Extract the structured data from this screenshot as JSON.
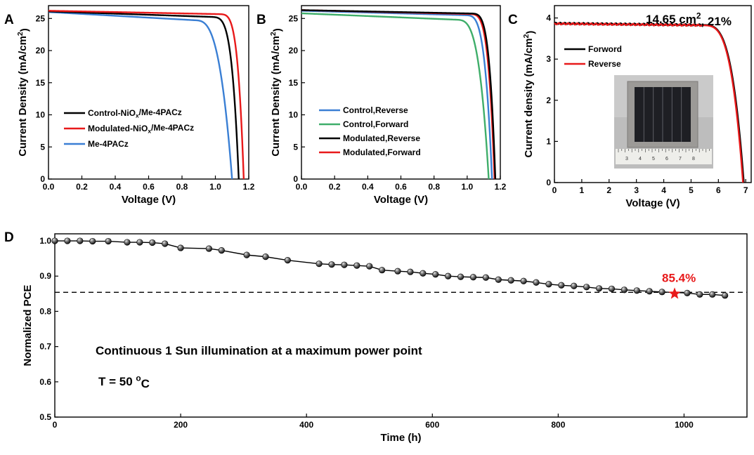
{
  "chart_data": [
    {
      "panel": "A",
      "type": "line",
      "xlabel": "Voltage (V)",
      "ylabel": "Current Density (mA/cm2)",
      "xlim": [
        0,
        1.2
      ],
      "ylim": [
        0,
        27
      ],
      "xticks": [
        "0.0",
        "0.2",
        "0.4",
        "0.6",
        "0.8",
        "1.0",
        "1.2"
      ],
      "yticks": [
        "0",
        "5",
        "10",
        "15",
        "20",
        "25"
      ],
      "legend_position": "lower-left",
      "series": [
        {
          "name": "Control-NiOx/Me-4PACz",
          "label_parts": [
            "Control-NiO",
            "x",
            "/Me-4PACz"
          ],
          "color": "#000000",
          "jsc": 26.1,
          "voc": 1.14,
          "vknee": 0.96,
          "drop": 1.0,
          "m": 4.5
        },
        {
          "name": "Modulated-NiOx/Me-4PACz",
          "label_parts": [
            "Modulated-NiO",
            "x",
            "/Me-4PACz"
          ],
          "color": "#e8191a",
          "jsc": 26.2,
          "voc": 1.17,
          "vknee": 1.01,
          "drop": 0.6,
          "m": 4.5
        },
        {
          "name": "Me-4PACz",
          "label_parts": [
            "Me-4PACz",
            "",
            ""
          ],
          "color": "#3a7fd4",
          "jsc": 26.0,
          "voc": 1.1,
          "vknee": 0.88,
          "drop": 1.6,
          "m": 3.0
        }
      ]
    },
    {
      "panel": "B",
      "type": "line",
      "xlabel": "Voltage (V)",
      "ylabel": "Current Density (mA/cm2)",
      "xlim": [
        0,
        1.2
      ],
      "ylim": [
        0,
        27
      ],
      "xticks": [
        "0.0",
        "0.2",
        "0.4",
        "0.6",
        "0.8",
        "1.0",
        "1.2"
      ],
      "yticks": [
        "0",
        "5",
        "10",
        "15",
        "20",
        "25"
      ],
      "legend_position": "lower-left",
      "series": [
        {
          "name": "Control,Reverse",
          "color": "#3a7fd4",
          "jsc": 26.2,
          "voc": 1.15,
          "vknee": 0.98,
          "drop": 0.8,
          "m": 4.0
        },
        {
          "name": "Control,Forward",
          "color": "#3fae6a",
          "jsc": 25.8,
          "voc": 1.13,
          "vknee": 0.93,
          "drop": 1.2,
          "m": 3.5
        },
        {
          "name": "Modulated,Reverse",
          "color": "#000000",
          "jsc": 26.3,
          "voc": 1.17,
          "vknee": 1.01,
          "drop": 0.6,
          "m": 4.5
        },
        {
          "name": "Modulated,Forward",
          "color": "#e8191a",
          "jsc": 26.3,
          "voc": 1.165,
          "vknee": 1.0,
          "drop": 0.7,
          "m": 4.5
        }
      ]
    },
    {
      "panel": "C",
      "type": "line",
      "xlabel": "Voltage (V)",
      "ylabel": "Current density (mA/cm2)",
      "xlim": [
        0,
        7.2
      ],
      "ylim": [
        0,
        4.3
      ],
      "xticks": [
        "0",
        "1",
        "2",
        "3",
        "4",
        "5",
        "6",
        "7"
      ],
      "yticks": [
        "0",
        "1",
        "2",
        "3",
        "4"
      ],
      "annotation": "14.65 cm2, 21%",
      "annotation_parts": [
        "14.65 cm",
        "2",
        ", 21%"
      ],
      "legend_position": "upper-left",
      "inset": "photo of perovskite mini-module on a ruler",
      "ruler_labels": [
        "3",
        "4",
        "5",
        "6",
        "7",
        "8"
      ],
      "series": [
        {
          "name": "Forword",
          "color": "#000000",
          "jsc": 3.87,
          "voc": 6.93,
          "vknee": 5.4,
          "drop": 0.05,
          "m": 3.5
        },
        {
          "name": "Reverse",
          "color": "#e8191a",
          "jsc": 3.86,
          "voc": 6.9,
          "vknee": 5.4,
          "drop": 0.05,
          "m": 3.5
        }
      ]
    },
    {
      "panel": "D",
      "type": "scatter",
      "xlabel": "Time (h)",
      "ylabel": "Normalized PCE",
      "xlim": [
        0,
        1100
      ],
      "ylim": [
        0.5,
        1.02
      ],
      "xticks": [
        "0",
        "200",
        "400",
        "600",
        "800",
        "1000"
      ],
      "yticks": [
        "0.5",
        "0.6",
        "0.7",
        "0.8",
        "0.9",
        "1.0"
      ],
      "reference_line": 0.854,
      "highlight": {
        "x": 985,
        "y": 0.85,
        "label": "85.4%",
        "color": "#e8191a"
      },
      "annotation_lines": [
        "Continuous 1 Sun illumination at a maximum power point"
      ],
      "temperature_parts": [
        "T = 50 ",
        "o",
        "C"
      ],
      "series": [
        {
          "name": "Normalized PCE",
          "color": "#000000",
          "x": [
            0,
            20,
            40,
            60,
            85,
            115,
            135,
            155,
            175,
            200,
            245,
            265,
            305,
            335,
            370,
            420,
            440,
            460,
            480,
            500,
            520,
            545,
            565,
            585,
            605,
            625,
            645,
            665,
            685,
            705,
            725,
            745,
            765,
            785,
            805,
            825,
            845,
            865,
            885,
            905,
            925,
            945,
            965,
            1005,
            1025,
            1045,
            1065
          ],
          "y": [
            1.0,
            1.0,
            1.0,
            0.999,
            0.999,
            0.996,
            0.996,
            0.995,
            0.992,
            0.98,
            0.978,
            0.973,
            0.96,
            0.955,
            0.945,
            0.935,
            0.933,
            0.932,
            0.93,
            0.928,
            0.917,
            0.914,
            0.912,
            0.908,
            0.905,
            0.9,
            0.898,
            0.897,
            0.896,
            0.89,
            0.888,
            0.886,
            0.882,
            0.877,
            0.874,
            0.872,
            0.869,
            0.865,
            0.864,
            0.861,
            0.859,
            0.857,
            0.855,
            0.852,
            0.848,
            0.848,
            0.845
          ]
        }
      ]
    }
  ]
}
